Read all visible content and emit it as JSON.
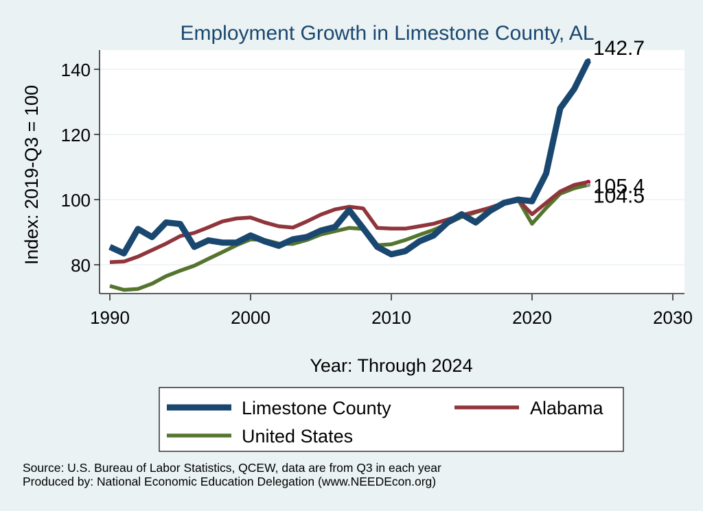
{
  "chart_data": {
    "type": "line",
    "title": "Employment Growth in Limestone County, AL",
    "xlabel": "Year: Through 2024",
    "ylabel": "Index: 2019-Q3 = 100",
    "xlim": [
      1990,
      2030
    ],
    "ylim": [
      70,
      146
    ],
    "x_ticks": [
      "1990",
      "2000",
      "2010",
      "2020",
      "2030"
    ],
    "y_ticks": [
      "80",
      "100",
      "120",
      "140"
    ],
    "grid": true,
    "legend_position": "bottom",
    "colors": {
      "limestone": "#1a476f",
      "alabama": "#90353b",
      "us": "#55752f",
      "title": "#1a476f",
      "plot_bg": "#ffffff",
      "page_bg": "#eaf2f3",
      "grid": "#eaf2f3"
    },
    "x": [
      1990,
      1991,
      1992,
      1993,
      1994,
      1995,
      1996,
      1997,
      1998,
      1999,
      2000,
      2001,
      2002,
      2003,
      2004,
      2005,
      2006,
      2007,
      2008,
      2009,
      2010,
      2011,
      2012,
      2013,
      2014,
      2015,
      2016,
      2017,
      2018,
      2019,
      2020,
      2021,
      2022,
      2023,
      2024
    ],
    "series": [
      {
        "name": "Limestone  County",
        "values": [
          85.5,
          83.5,
          91,
          88.5,
          93,
          92.5,
          85.5,
          87.5,
          86.8,
          86.8,
          89,
          87.2,
          85.8,
          87.8,
          88.5,
          90.5,
          91.6,
          96.8,
          91.2,
          85.5,
          83.2,
          84.2,
          87.2,
          89,
          93,
          95.5,
          93,
          96.5,
          99,
          100,
          99.5,
          108,
          128,
          134,
          142.7
        ]
      },
      {
        "name": "Alabama",
        "values": [
          80.8,
          81,
          82.5,
          84.5,
          86.5,
          88.8,
          89.8,
          91.5,
          93.3,
          94.2,
          94.5,
          93,
          91.8,
          91.4,
          93.3,
          95.4,
          97,
          97.8,
          97.3,
          91.3,
          91.1,
          91.1,
          91.8,
          92.6,
          93.9,
          95.2,
          96.3,
          97.5,
          99,
          100,
          95.5,
          99,
          102.5,
          104.5,
          105.4
        ]
      },
      {
        "name": "United States",
        "values": [
          73.5,
          72.3,
          72.6,
          74.2,
          76.5,
          78.2,
          79.7,
          81.8,
          83.9,
          86,
          87.8,
          87.6,
          86.5,
          86.4,
          87.6,
          89.3,
          90.3,
          91.3,
          91,
          86,
          86.3,
          87.6,
          89.2,
          90.7,
          92.6,
          94.7,
          96.1,
          97.4,
          98.7,
          100,
          92.6,
          97.4,
          101.8,
          103.5,
          104.5
        ]
      }
    ],
    "end_labels": [
      "142.7",
      "105.4",
      "104.5"
    ]
  },
  "source_line1": "Source: U.S. Bureau of Labor Statistics, QCEW, data are from Q3 in each year",
  "source_line2": "Produced by: National Economic Education Delegation (www.NEEDEcon.org)"
}
